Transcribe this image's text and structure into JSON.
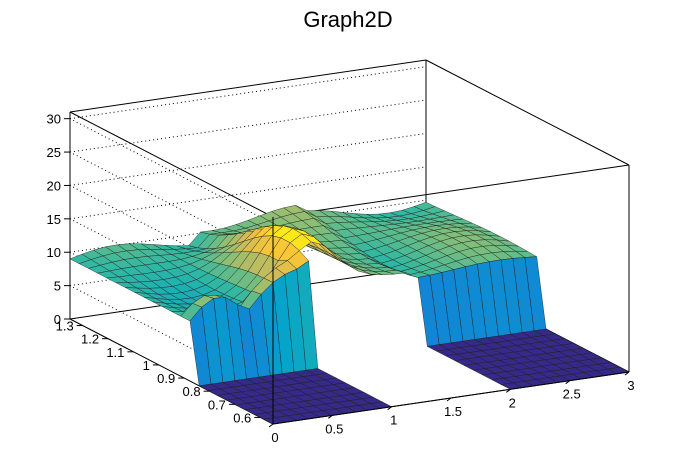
{
  "chart_data": {
    "type": "surface3d",
    "title": "Graph2D",
    "xlabel": "",
    "ylabel": "",
    "zlabel": "",
    "x_ticks": [
      "0",
      "0.5",
      "1",
      "1.5",
      "2",
      "2.5",
      "3"
    ],
    "y_ticks": [
      "0.6",
      "0.7",
      "0.8",
      "0.9",
      "1",
      "1.1",
      "1.2",
      "1.3"
    ],
    "z_ticks": [
      "0",
      "5",
      "10",
      "15",
      "20",
      "25",
      "30"
    ],
    "xlim": [
      0,
      3
    ],
    "ylim": [
      0.55,
      1.35
    ],
    "zlim": [
      0,
      31
    ],
    "grid": "dotted on back walls",
    "palette": [
      "#352a87",
      "#0f5cdd",
      "#1481d6",
      "#06a4ca",
      "#2eb7a4",
      "#87bf77",
      "#d1bb59",
      "#fec832",
      "#f9fb0e"
    ],
    "surface_regions": [
      {
        "x_range": [
          0,
          1.0
        ],
        "y_range": [
          0.55,
          0.85
        ],
        "z_value": 0,
        "description": "flat floor"
      },
      {
        "x_range": [
          0,
          1.0
        ],
        "y_range": [
          0.85,
          1.35
        ],
        "z_value": 9,
        "description": "plateau"
      },
      {
        "x_range": [
          1.0,
          1.9
        ],
        "y_range": [
          0.55,
          0.9
        ],
        "z_value": null,
        "description": "hole (no data)"
      },
      {
        "x_range": [
          1.0,
          1.9
        ],
        "y_range": [
          0.9,
          1.35
        ],
        "z_value": 11,
        "description": "arch ridge"
      },
      {
        "x_range": [
          1.9,
          3.0
        ],
        "y_range": [
          0.55,
          0.9
        ],
        "z_value": 0,
        "description": "flat floor"
      },
      {
        "x_range": [
          1.9,
          3.0
        ],
        "y_range": [
          0.9,
          1.35
        ],
        "z_value": 10,
        "description": "plateau"
      }
    ],
    "peak": {
      "x": 1.1,
      "y": 0.95,
      "z": 17
    }
  }
}
